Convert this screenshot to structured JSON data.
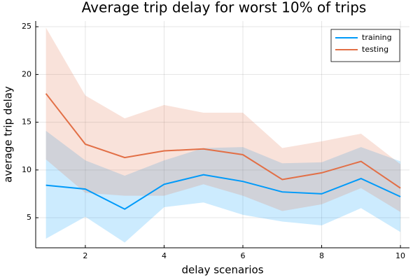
{
  "chart_data": {
    "type": "line",
    "title": "Average trip delay for worst 10% of trips",
    "xlabel": "delay scenarios",
    "ylabel": "average trip delay",
    "x": [
      1,
      2,
      3,
      4,
      5,
      6,
      7,
      8,
      9,
      10
    ],
    "series": [
      {
        "name": "training",
        "color": "#009af9",
        "values": [
          8.4,
          8.0,
          5.9,
          8.5,
          9.5,
          8.8,
          7.7,
          7.5,
          9.1,
          7.2
        ],
        "upper": [
          14.1,
          11.0,
          9.4,
          11.0,
          12.3,
          12.4,
          10.7,
          10.8,
          12.4,
          10.9
        ],
        "lower": [
          2.8,
          5.1,
          2.4,
          6.1,
          6.6,
          5.3,
          4.6,
          4.2,
          6.0,
          3.5
        ]
      },
      {
        "name": "testing",
        "color": "#e26f46",
        "values": [
          18.0,
          12.7,
          11.3,
          12.0,
          12.2,
          11.6,
          9.0,
          9.7,
          10.9,
          8.1
        ],
        "upper": [
          24.9,
          17.8,
          15.4,
          16.8,
          16.0,
          16.0,
          12.3,
          13.0,
          13.8,
          10.6
        ],
        "lower": [
          11.1,
          7.6,
          7.3,
          7.3,
          8.5,
          7.3,
          5.7,
          6.4,
          8.1,
          5.6
        ]
      }
    ],
    "xlim": [
      0.74,
      10.23
    ],
    "xticks": [
      2,
      4,
      6,
      8,
      10
    ],
    "ylim": [
      1.85,
      25.6
    ],
    "yticks": [
      5,
      10,
      15,
      20,
      25
    ],
    "grid": true,
    "legend": "top-right"
  }
}
